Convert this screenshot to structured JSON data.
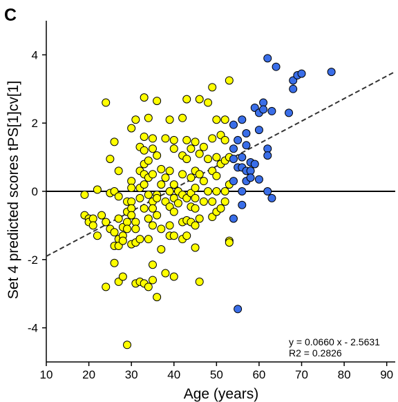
{
  "chart_data": {
    "type": "scatter",
    "panel_label": "C",
    "xlabel": "Age (years)",
    "ylabel": "Set 4 predicted scores tPS[1]cv[1]",
    "xlim": [
      10,
      92
    ],
    "ylim": [
      -5,
      5
    ],
    "xticks": [
      "10",
      "20",
      "30",
      "40",
      "50",
      "60",
      "70",
      "80",
      "90"
    ],
    "yticks": [
      "4",
      "2",
      "0",
      "-2",
      "-4"
    ],
    "grid": false,
    "zero_line": 0,
    "regression": {
      "slope": 0.066,
      "intercept": -2.5631,
      "x_range": [
        10,
        92
      ],
      "equation_label": "y = 0.0660 x - 2.5631",
      "r2_label": "R2 = 0.2826"
    },
    "colors": {
      "yellow": "#ffff00",
      "blue": "#3a6ee8",
      "stroke": "#000000"
    },
    "series": [
      {
        "color": "#ffff00",
        "points": [
          [
            19,
            -0.1
          ],
          [
            19,
            -0.7
          ],
          [
            20,
            -0.8
          ],
          [
            20,
            -0.9
          ],
          [
            21,
            -0.8
          ],
          [
            21,
            -1.0
          ],
          [
            22,
            0.05
          ],
          [
            22,
            -1.3
          ],
          [
            23,
            -0.7
          ],
          [
            24,
            2.6
          ],
          [
            24,
            -0.9
          ],
          [
            24,
            -2.8
          ],
          [
            25,
            0.95
          ],
          [
            25,
            -0.05
          ],
          [
            25,
            -1.1
          ],
          [
            26,
            1.45
          ],
          [
            26,
            0.0
          ],
          [
            26,
            -1.2
          ],
          [
            26,
            -1.6
          ],
          [
            26,
            -2.1
          ],
          [
            27,
            0.6
          ],
          [
            27,
            -0.15
          ],
          [
            27,
            -0.8
          ],
          [
            27,
            -1.4
          ],
          [
            27,
            -1.6
          ],
          [
            27,
            -2.65
          ],
          [
            28,
            -1.05
          ],
          [
            28,
            -1.3
          ],
          [
            28,
            -1.45
          ],
          [
            28,
            -2.5
          ],
          [
            29,
            -0.3
          ],
          [
            29,
            -0.6
          ],
          [
            29,
            -0.9
          ],
          [
            29,
            -1.1
          ],
          [
            29,
            -4.5
          ],
          [
            30,
            1.85
          ],
          [
            30,
            0.3
          ],
          [
            30,
            0.1
          ],
          [
            30,
            -0.3
          ],
          [
            30,
            -0.5
          ],
          [
            30,
            -0.7
          ],
          [
            30,
            -1.55
          ],
          [
            31,
            2.1
          ],
          [
            31,
            -0.9
          ],
          [
            31,
            -1.1
          ],
          [
            31,
            -1.5
          ],
          [
            31,
            -2.7
          ],
          [
            32,
            1.3
          ],
          [
            32,
            0.6
          ],
          [
            32,
            0.1
          ],
          [
            32,
            -0.2
          ],
          [
            32,
            -1.4
          ],
          [
            32,
            -2.65
          ],
          [
            33,
            2.75
          ],
          [
            33,
            1.6
          ],
          [
            33,
            1.2
          ],
          [
            33,
            0.8
          ],
          [
            33,
            0.5
          ],
          [
            33,
            0.2
          ],
          [
            33,
            -0.5
          ],
          [
            33,
            -2.7
          ],
          [
            34,
            2.15
          ],
          [
            34,
            0.9
          ],
          [
            34,
            0.4
          ],
          [
            34,
            -0.1
          ],
          [
            34,
            -0.8
          ],
          [
            34,
            -1.4
          ],
          [
            34,
            -2.8
          ],
          [
            35,
            1.55
          ],
          [
            35,
            1.25
          ],
          [
            35,
            0.5
          ],
          [
            35,
            -0.3
          ],
          [
            35,
            -0.5
          ],
          [
            35,
            -1.0
          ],
          [
            35,
            -2.15
          ],
          [
            35,
            -2.6
          ],
          [
            36,
            2.65
          ],
          [
            36,
            1.05
          ],
          [
            36,
            -0.1
          ],
          [
            36,
            -0.2
          ],
          [
            36,
            -0.7
          ],
          [
            36,
            -3.1
          ],
          [
            37,
            0.65
          ],
          [
            37,
            0.2
          ],
          [
            37,
            -1.1
          ],
          [
            37,
            -1.7
          ],
          [
            38,
            1.55
          ],
          [
            38,
            0.4
          ],
          [
            38,
            -0.3
          ],
          [
            38,
            -2.4
          ],
          [
            39,
            2.1
          ],
          [
            39,
            0.6
          ],
          [
            39,
            0.0
          ],
          [
            39,
            -0.45
          ],
          [
            39,
            -1.0
          ],
          [
            39,
            -1.3
          ],
          [
            40,
            1.5
          ],
          [
            40,
            1.25
          ],
          [
            40,
            0.2
          ],
          [
            40,
            -0.2
          ],
          [
            40,
            -0.6
          ],
          [
            40,
            -1.3
          ],
          [
            40,
            -2.5
          ],
          [
            41,
            0.0
          ],
          [
            41,
            -0.35
          ],
          [
            42,
            2.15
          ],
          [
            42,
            1.05
          ],
          [
            42,
            0.5
          ],
          [
            42,
            -0.1
          ],
          [
            42,
            -0.9
          ],
          [
            42,
            -1.4
          ],
          [
            43,
            2.7
          ],
          [
            43,
            1.5
          ],
          [
            43,
            0.95
          ],
          [
            43,
            -0.2
          ],
          [
            43,
            -0.85
          ],
          [
            43,
            -1.3
          ],
          [
            44,
            1.25
          ],
          [
            44,
            0.4
          ],
          [
            44,
            -0.05
          ],
          [
            44,
            -0.45
          ],
          [
            44,
            -0.9
          ],
          [
            45,
            1.45
          ],
          [
            45,
            0.6
          ],
          [
            45,
            0.1
          ],
          [
            45,
            -0.2
          ],
          [
            45,
            -0.5
          ],
          [
            45,
            -1.0
          ],
          [
            45,
            -1.65
          ],
          [
            46,
            2.7
          ],
          [
            46,
            1.1
          ],
          [
            46,
            0.5
          ],
          [
            46,
            -0.8
          ],
          [
            46,
            -2.65
          ],
          [
            47,
            1.3
          ],
          [
            47,
            0.3
          ],
          [
            47,
            -0.3
          ],
          [
            48,
            2.6
          ],
          [
            48,
            0.95
          ],
          [
            48,
            0.0
          ],
          [
            49,
            3.05
          ],
          [
            49,
            1.55
          ],
          [
            49,
            0.6
          ],
          [
            49,
            -0.3
          ],
          [
            49,
            -0.75
          ],
          [
            50,
            2.1
          ],
          [
            50,
            1.0
          ],
          [
            50,
            0.45
          ],
          [
            50,
            0.0
          ],
          [
            50,
            -0.6
          ],
          [
            51,
            1.65
          ],
          [
            51,
            0.8
          ],
          [
            51,
            -0.5
          ],
          [
            52,
            2.1
          ],
          [
            52,
            1.5
          ],
          [
            52,
            0.9
          ],
          [
            52,
            0.0
          ],
          [
            52,
            -0.3
          ],
          [
            53,
            3.25
          ],
          [
            53,
            1.0
          ],
          [
            53,
            0.2
          ],
          [
            53,
            -1.45
          ],
          [
            53,
            -1.5
          ]
        ]
      },
      {
        "color": "#3a6ee8",
        "points": [
          [
            54,
            1.95
          ],
          [
            54,
            1.25
          ],
          [
            54,
            0.95
          ],
          [
            54,
            0.3
          ],
          [
            54,
            -0.8
          ],
          [
            55,
            1.5
          ],
          [
            55,
            0.7
          ],
          [
            55,
            -3.45
          ],
          [
            56,
            2.1
          ],
          [
            56,
            1.0
          ],
          [
            56,
            0.7
          ],
          [
            56,
            0.0
          ],
          [
            56,
            -0.4
          ],
          [
            57,
            1.7
          ],
          [
            57,
            1.35
          ],
          [
            57,
            0.6
          ],
          [
            57,
            0.3
          ],
          [
            58,
            0.85
          ],
          [
            58,
            0.6
          ],
          [
            58,
            0.4
          ],
          [
            59,
            2.45
          ],
          [
            59,
            0.8
          ],
          [
            60,
            2.3
          ],
          [
            60,
            1.8
          ],
          [
            60,
            0.35
          ],
          [
            61,
            2.6
          ],
          [
            61,
            2.4
          ],
          [
            62,
            3.9
          ],
          [
            62,
            1.25
          ],
          [
            62,
            1.05
          ],
          [
            62,
            0.0
          ],
          [
            63,
            2.35
          ],
          [
            63,
            -0.2
          ],
          [
            64,
            3.65
          ],
          [
            67,
            2.3
          ],
          [
            68,
            3.25
          ],
          [
            68,
            3.0
          ],
          [
            69,
            3.4
          ],
          [
            70,
            3.45
          ],
          [
            77,
            3.5
          ]
        ]
      }
    ]
  }
}
